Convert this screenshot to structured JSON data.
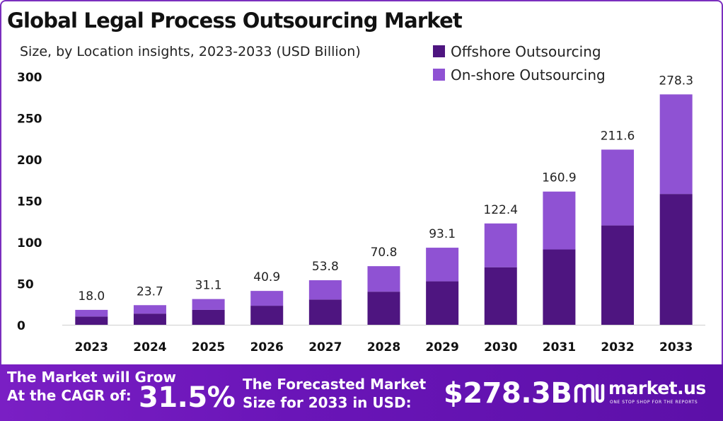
{
  "title": "Global Legal Process Outsourcing Market",
  "subtitle": "Size, by Location insights, 2023-2033 (USD Billion)",
  "colors": {
    "offshore": "#4e1580",
    "onshore": "#8f52d3",
    "footer": "#6a15b8",
    "frame": "#7b2fbe"
  },
  "chart_data": {
    "type": "bar",
    "stacked": true,
    "categories": [
      "2023",
      "2024",
      "2025",
      "2026",
      "2027",
      "2028",
      "2029",
      "2030",
      "2031",
      "2032",
      "2033"
    ],
    "series": [
      {
        "name": "Offshore Outsourcing",
        "values": [
          10.0,
          13.5,
          18.0,
          23.0,
          30.5,
          40.0,
          52.5,
          69.5,
          91.0,
          120.0,
          158.0
        ]
      },
      {
        "name": "On-shore Outsourcing",
        "values": [
          8.0,
          10.2,
          13.1,
          17.9,
          23.3,
          30.8,
          40.6,
          52.9,
          69.9,
          91.6,
          120.3
        ]
      }
    ],
    "totals": [
      "18.0",
      "23.7",
      "31.1",
      "40.9",
      "53.8",
      "70.8",
      "93.1",
      "122.4",
      "160.9",
      "211.6",
      "278.3"
    ],
    "y_ticks": [
      "0",
      "50",
      "100",
      "150",
      "200",
      "250",
      "300"
    ],
    "ylim": [
      0,
      300
    ],
    "grid": false,
    "legend_position": "top-right"
  },
  "footer": {
    "grow_line1": "The Market will Grow",
    "grow_line2": "At the CAGR of:",
    "cagr": "31.5%",
    "forecast_line1": "The Forecasted Market",
    "forecast_line2": "Size for 2033 in USD:",
    "forecast_value": "$278.3B",
    "brand": "market.us",
    "tagline": "ONE STOP SHOP FOR THE REPORTS"
  }
}
